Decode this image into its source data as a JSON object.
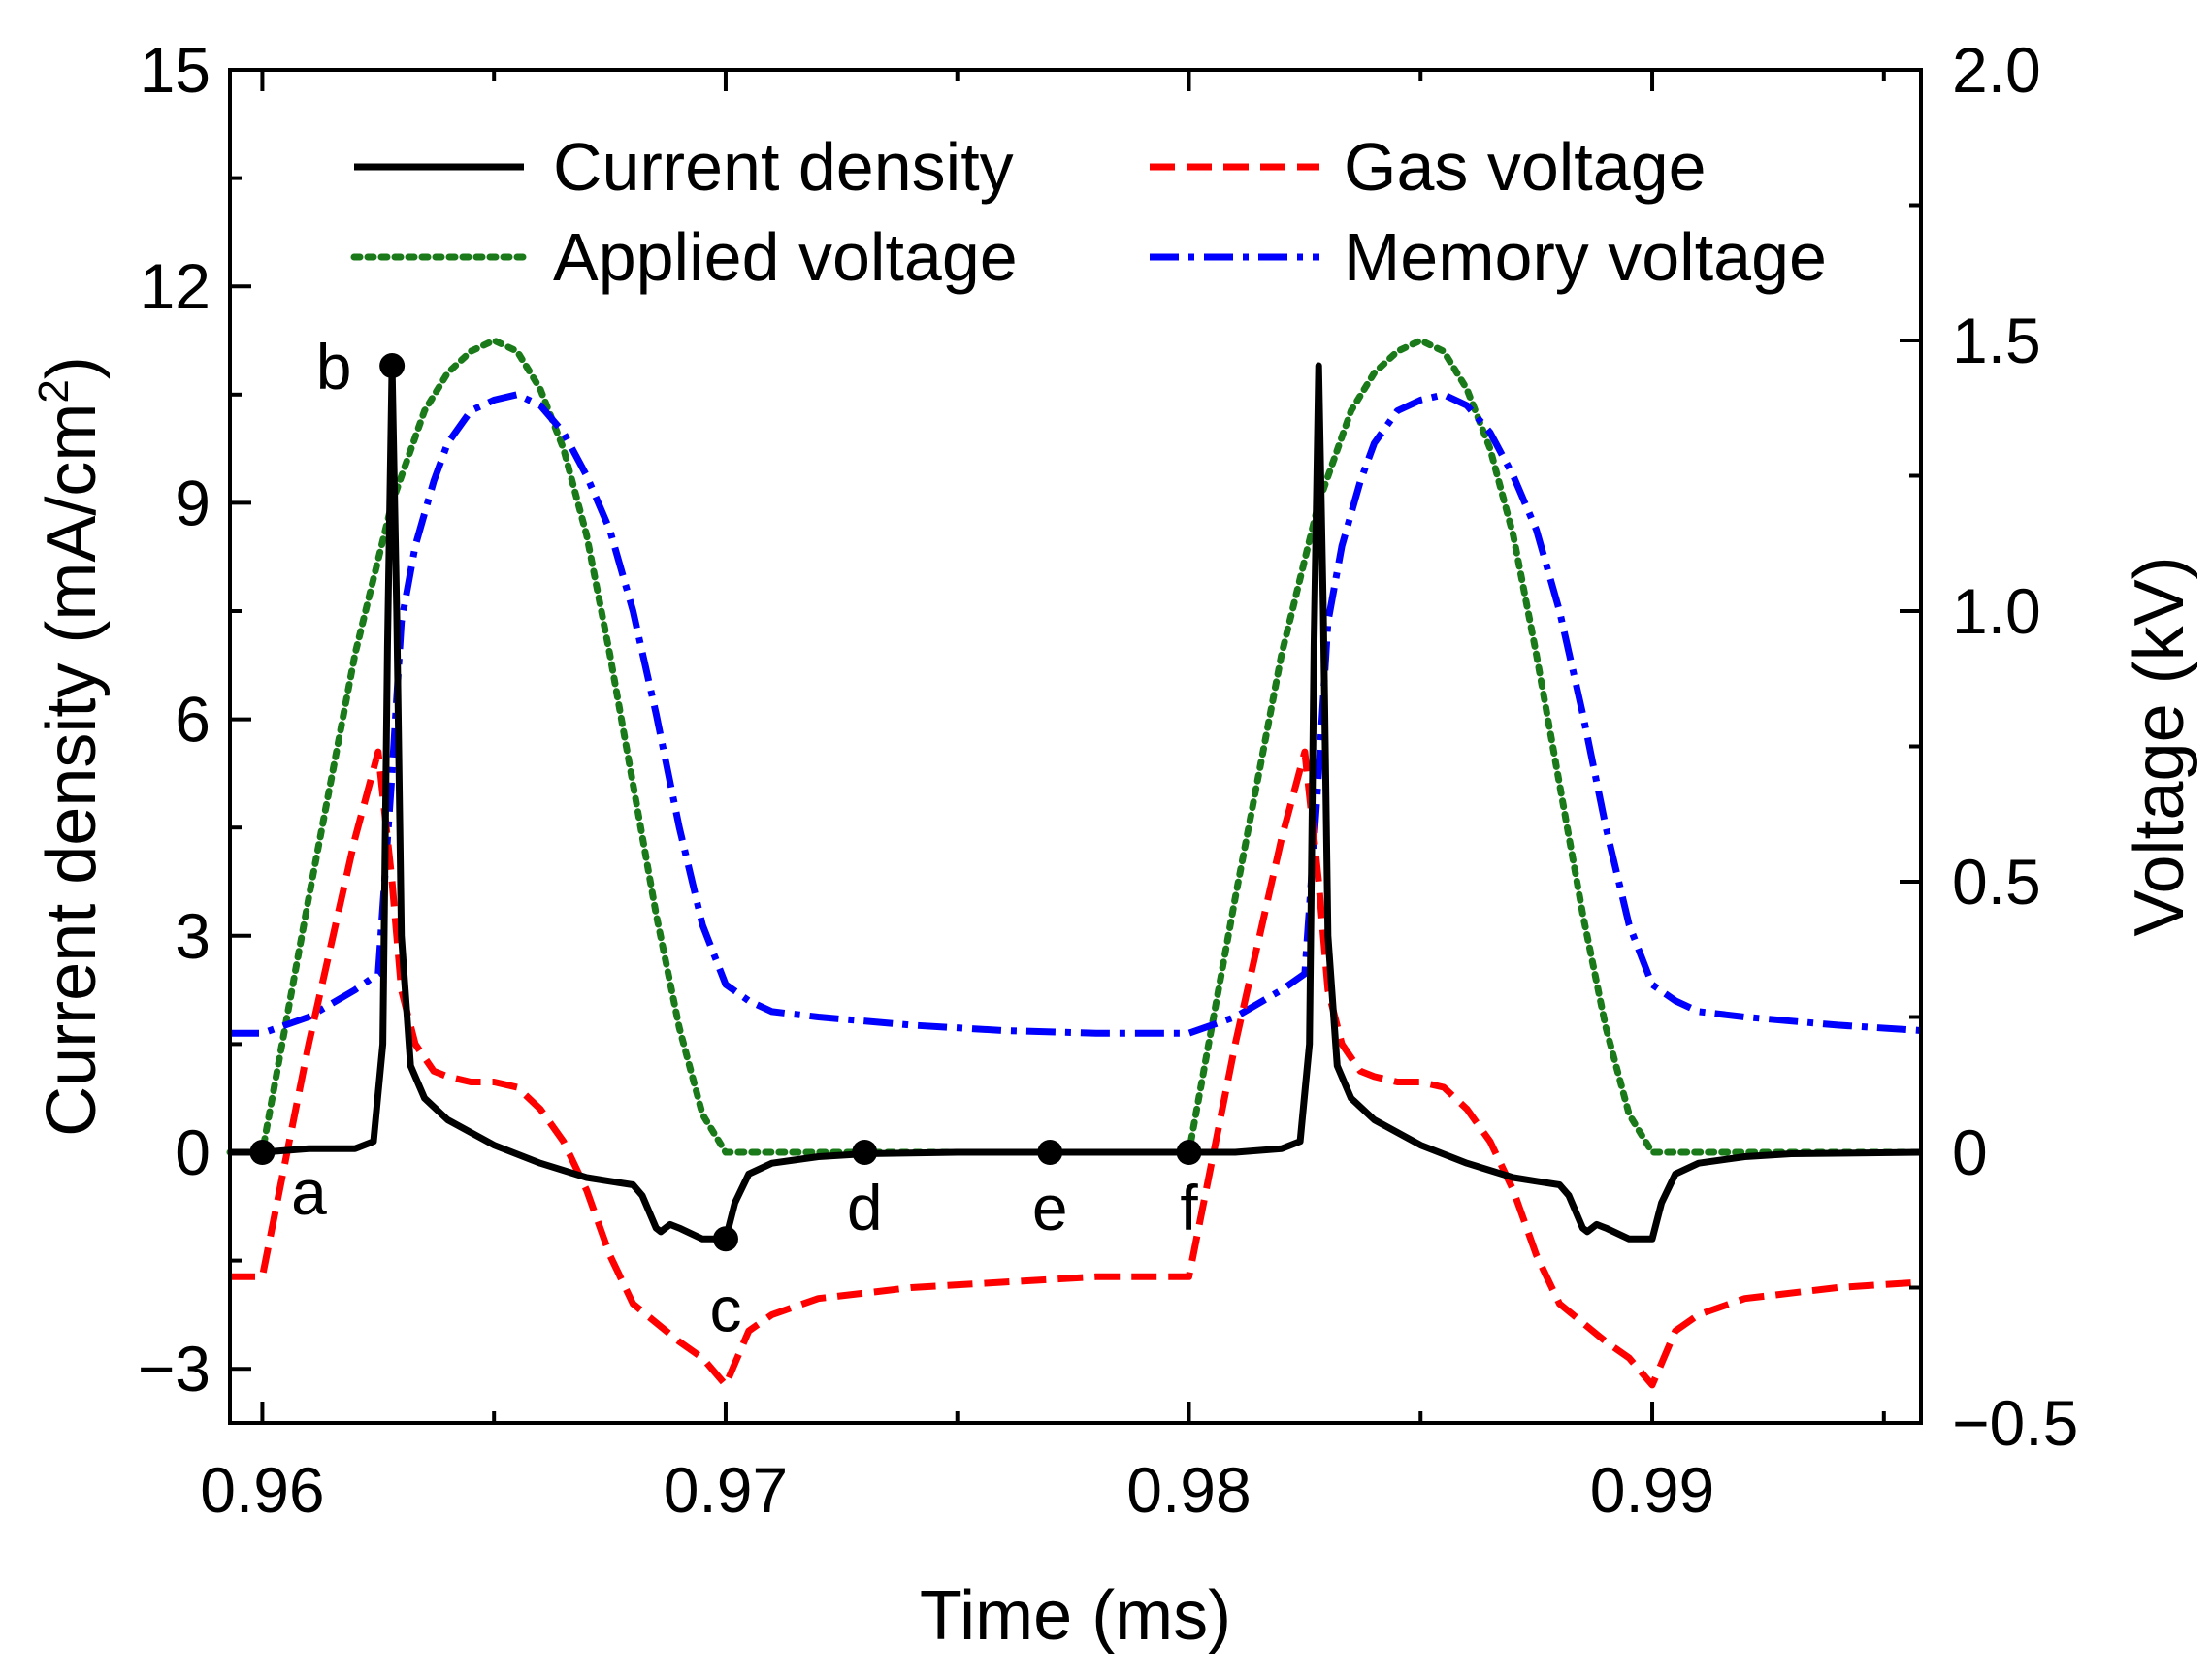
{
  "chart_data": {
    "type": "line",
    "xlabel": "Time (ms)",
    "ylabel_left": "Current density (mA/cm",
    "ylabel_left_sup": "2",
    "ylabel_left_close": ")",
    "ylabel_right": "Voltage (kV)",
    "xlim": [
      0.9593,
      0.9958
    ],
    "ylim_left": [
      -3.75,
      15
    ],
    "ylim_right": [
      -0.5,
      2.0
    ],
    "x_ticks": [
      0.96,
      0.97,
      0.98,
      0.99
    ],
    "x_tick_labels": [
      "0.96",
      "0.97",
      "0.98",
      "0.99"
    ],
    "y_left_ticks": [
      -3,
      0,
      3,
      6,
      9,
      12,
      15
    ],
    "y_left_tick_labels": [
      "−3",
      "0",
      "3",
      "6",
      "9",
      "12",
      "15"
    ],
    "y_right_ticks": [
      -0.5,
      0.0,
      0.5,
      1.0,
      1.5,
      2.0
    ],
    "y_right_tick_labels": [
      "−0.5",
      "0",
      "0.5",
      "1.0",
      "1.5",
      "2.0"
    ],
    "legend": {
      "placement": "top",
      "entries": [
        {
          "name": "Current density",
          "series": "current_density"
        },
        {
          "name": "Gas voltage",
          "series": "gas_voltage"
        },
        {
          "name": "Applied voltage",
          "series": "applied_voltage"
        },
        {
          "name": "Memory voltage",
          "series": "memory_voltage"
        }
      ]
    },
    "series": [
      {
        "name": "Current density",
        "key": "current_density",
        "axis": "left",
        "color": "#000000",
        "style": "solid",
        "x": [
          0.9593,
          0.96,
          0.961,
          0.962,
          0.9624,
          0.9626,
          0.9627,
          0.9628,
          0.9629,
          0.963,
          0.9632,
          0.9635,
          0.964,
          0.965,
          0.966,
          0.967,
          0.9675,
          0.968,
          0.9682,
          0.9685,
          0.9686,
          0.9688,
          0.969,
          0.9695,
          0.97,
          0.9702,
          0.9705,
          0.971,
          0.972,
          0.973,
          0.975,
          0.977,
          0.979,
          0.98,
          0.981,
          0.982,
          0.9824,
          0.9826,
          0.9827,
          0.9828,
          0.9829,
          0.983,
          0.9832,
          0.9835,
          0.984,
          0.985,
          0.986,
          0.987,
          0.9875,
          0.988,
          0.9882,
          0.9885,
          0.9886,
          0.9888,
          0.989,
          0.9895,
          0.99,
          0.9902,
          0.9905,
          0.991,
          0.992,
          0.993,
          0.9958
        ],
        "y": [
          0.0,
          0.0,
          0.05,
          0.05,
          0.15,
          1.5,
          7.0,
          10.9,
          7.5,
          3.0,
          1.2,
          0.75,
          0.45,
          0.1,
          -0.15,
          -0.35,
          -0.4,
          -0.45,
          -0.6,
          -1.05,
          -1.1,
          -1.0,
          -1.05,
          -1.2,
          -1.2,
          -0.7,
          -0.3,
          -0.15,
          -0.06,
          -0.02,
          0.0,
          0.0,
          0.0,
          0.0,
          0.0,
          0.05,
          0.15,
          1.5,
          7.0,
          10.9,
          7.5,
          3.0,
          1.2,
          0.75,
          0.45,
          0.1,
          -0.15,
          -0.35,
          -0.4,
          -0.45,
          -0.6,
          -1.05,
          -1.1,
          -1.0,
          -1.05,
          -1.2,
          -1.2,
          -0.7,
          -0.3,
          -0.15,
          -0.06,
          -0.02,
          0.0
        ]
      },
      {
        "name": "Gas voltage",
        "key": "gas_voltage",
        "axis": "right",
        "color": "#ff0000",
        "style": "dashed",
        "x": [
          0.9593,
          0.96,
          0.961,
          0.962,
          0.9625,
          0.9628,
          0.963,
          0.9633,
          0.9637,
          0.964,
          0.9645,
          0.965,
          0.9655,
          0.966,
          0.9665,
          0.967,
          0.9675,
          0.968,
          0.969,
          0.9695,
          0.97,
          0.9702,
          0.9705,
          0.971,
          0.972,
          0.974,
          0.976,
          0.978,
          0.98,
          0.981,
          0.982,
          0.9825,
          0.9828,
          0.983,
          0.9833,
          0.9837,
          0.984,
          0.9845,
          0.985,
          0.9855,
          0.986,
          0.9865,
          0.987,
          0.9875,
          0.988,
          0.989,
          0.9895,
          0.99,
          0.9902,
          0.9905,
          0.991,
          0.992,
          0.994,
          0.9958
        ],
        "y": [
          -0.23,
          -0.23,
          0.2,
          0.58,
          0.74,
          0.5,
          0.3,
          0.2,
          0.15,
          0.14,
          0.13,
          0.13,
          0.12,
          0.08,
          0.02,
          -0.07,
          -0.19,
          -0.28,
          -0.35,
          -0.38,
          -0.43,
          -0.39,
          -0.33,
          -0.3,
          -0.27,
          -0.25,
          -0.24,
          -0.23,
          -0.23,
          0.2,
          0.58,
          0.74,
          0.5,
          0.3,
          0.2,
          0.15,
          0.14,
          0.13,
          0.13,
          0.12,
          0.08,
          0.02,
          -0.07,
          -0.19,
          -0.28,
          -0.35,
          -0.38,
          -0.43,
          -0.39,
          -0.33,
          -0.3,
          -0.27,
          -0.25,
          -0.24
        ]
      },
      {
        "name": "Applied voltage",
        "key": "applied_voltage",
        "axis": "right",
        "color": "#1a7a1a",
        "style": "dotted",
        "x": [
          0.9593,
          0.96,
          0.961,
          0.962,
          0.9628,
          0.9635,
          0.964,
          0.9645,
          0.965,
          0.9655,
          0.966,
          0.9665,
          0.967,
          0.9675,
          0.968,
          0.9685,
          0.969,
          0.9695,
          0.97,
          0.971,
          0.972,
          0.974,
          0.976,
          0.978,
          0.98,
          0.981,
          0.982,
          0.9828,
          0.9835,
          0.984,
          0.9845,
          0.985,
          0.9855,
          0.986,
          0.9865,
          0.987,
          0.9875,
          0.988,
          0.9885,
          0.989,
          0.9895,
          0.99,
          0.991,
          0.992,
          0.9958
        ],
        "y": [
          0.0,
          0.0,
          0.47,
          0.92,
          1.2,
          1.37,
          1.44,
          1.48,
          1.5,
          1.48,
          1.41,
          1.3,
          1.14,
          0.92,
          0.68,
          0.44,
          0.23,
          0.07,
          0.0,
          0.0,
          0.0,
          0.0,
          0.0,
          0.0,
          0.0,
          0.47,
          0.92,
          1.2,
          1.37,
          1.44,
          1.48,
          1.5,
          1.48,
          1.41,
          1.3,
          1.14,
          0.92,
          0.68,
          0.44,
          0.23,
          0.07,
          0.0,
          0.0,
          0.0,
          0.0
        ]
      },
      {
        "name": "Memory voltage",
        "key": "memory_voltage",
        "axis": "right",
        "color": "#0000ff",
        "style": "dashdot",
        "x": [
          0.9593,
          0.96,
          0.961,
          0.962,
          0.9625,
          0.9628,
          0.963,
          0.9633,
          0.9637,
          0.964,
          0.9645,
          0.965,
          0.9655,
          0.966,
          0.9665,
          0.967,
          0.9675,
          0.968,
          0.9685,
          0.969,
          0.9695,
          0.97,
          0.9705,
          0.971,
          0.972,
          0.974,
          0.976,
          0.978,
          0.98,
          0.981,
          0.982,
          0.9825,
          0.9828,
          0.983,
          0.9833,
          0.9837,
          0.984,
          0.9845,
          0.985,
          0.9855,
          0.986,
          0.9865,
          0.987,
          0.9875,
          0.988,
          0.9885,
          0.989,
          0.9895,
          0.99,
          0.9905,
          0.991,
          0.992,
          0.994,
          0.9958
        ],
        "y": [
          0.22,
          0.22,
          0.25,
          0.3,
          0.33,
          0.7,
          0.98,
          1.12,
          1.24,
          1.31,
          1.37,
          1.39,
          1.4,
          1.38,
          1.33,
          1.25,
          1.15,
          1.0,
          0.81,
          0.6,
          0.42,
          0.31,
          0.28,
          0.26,
          0.25,
          0.235,
          0.225,
          0.22,
          0.22,
          0.25,
          0.3,
          0.33,
          0.7,
          0.98,
          1.12,
          1.24,
          1.31,
          1.37,
          1.39,
          1.4,
          1.38,
          1.33,
          1.25,
          1.15,
          1.0,
          0.81,
          0.6,
          0.42,
          0.31,
          0.28,
          0.26,
          0.25,
          0.235,
          0.225
        ]
      }
    ],
    "annotations": [
      {
        "label": "a",
        "x": 0.96,
        "y": 0.0,
        "label_pos": "below-right"
      },
      {
        "label": "b",
        "x": 0.9628,
        "y": 10.9,
        "label_pos": "left"
      },
      {
        "label": "c",
        "x": 0.97,
        "y": -1.2,
        "label_pos": "below"
      },
      {
        "label": "d",
        "x": 0.973,
        "y": 0.0,
        "label_pos": "below"
      },
      {
        "label": "e",
        "x": 0.977,
        "y": 0.0,
        "label_pos": "below"
      },
      {
        "label": "f",
        "x": 0.98,
        "y": 0.0,
        "label_pos": "below"
      }
    ]
  }
}
